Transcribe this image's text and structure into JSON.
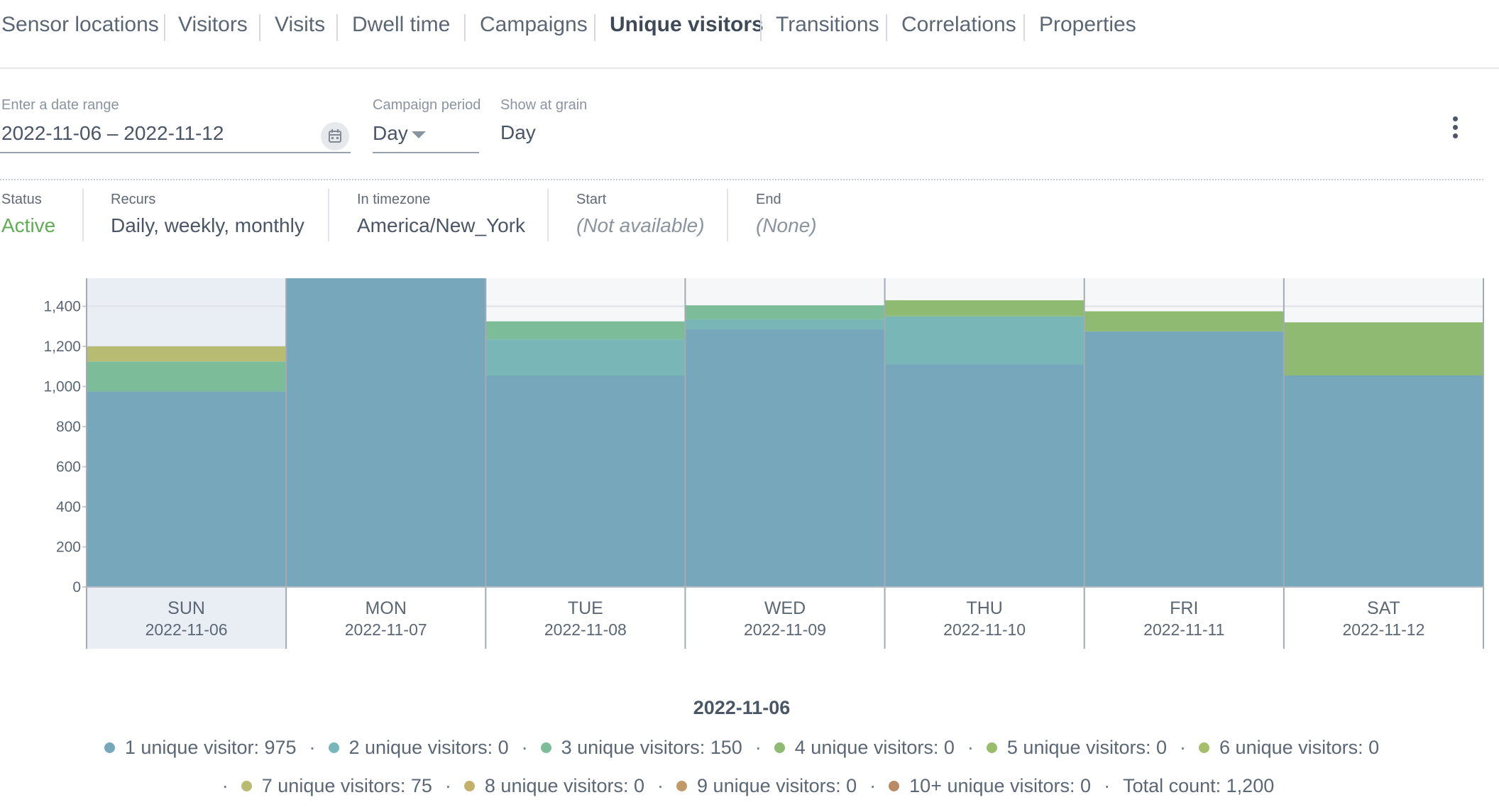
{
  "tabs": [
    {
      "label": "Sensor locations",
      "active": false
    },
    {
      "label": "Visitors",
      "active": false
    },
    {
      "label": "Visits",
      "active": false
    },
    {
      "label": "Dwell time",
      "active": false
    },
    {
      "label": "Campaigns",
      "active": false
    },
    {
      "label": "Unique visitors",
      "active": true
    },
    {
      "label": "Transitions",
      "active": false
    },
    {
      "label": "Correlations",
      "active": false
    },
    {
      "label": "Properties",
      "active": false
    }
  ],
  "controls": {
    "date_range": {
      "label": "Enter a date range",
      "value": "2022-11-06 – 2022-11-12",
      "icon": "calendar-icon"
    },
    "campaign_period": {
      "label": "Campaign period",
      "value": "Day",
      "icon": "caret-down-icon"
    },
    "grain": {
      "label": "Show at grain",
      "value": "Day"
    },
    "menu_icon": "more-vertical-icon"
  },
  "status": [
    {
      "label": "Status",
      "value": "Active",
      "style": "green"
    },
    {
      "label": "Recurs",
      "value": "Daily, weekly, monthly",
      "style": "normal"
    },
    {
      "label": "In timezone",
      "value": "America/New_York",
      "style": "normal"
    },
    {
      "label": "Start",
      "value": "(Not available)",
      "style": "italic"
    },
    {
      "label": "End",
      "value": "(None)",
      "style": "italic"
    }
  ],
  "chart_data": {
    "type": "bar",
    "stacked": true,
    "ylim": [
      0,
      1540
    ],
    "yticks": [
      0,
      200,
      400,
      600,
      800,
      1000,
      1200,
      1400
    ],
    "ytick_labels": [
      "0",
      "200",
      "400",
      "600",
      "800",
      "1,000",
      "1,200",
      "1,400"
    ],
    "selected_index": 0,
    "categories": [
      {
        "day": "SUN",
        "date": "2022-11-06"
      },
      {
        "day": "MON",
        "date": "2022-11-07"
      },
      {
        "day": "TUE",
        "date": "2022-11-08"
      },
      {
        "day": "WED",
        "date": "2022-11-09"
      },
      {
        "day": "THU",
        "date": "2022-11-10"
      },
      {
        "day": "FRI",
        "date": "2022-11-11"
      },
      {
        "day": "SAT",
        "date": "2022-11-12"
      }
    ],
    "series": [
      {
        "name": "1 unique visitor",
        "color": "#77a7bb",
        "values": [
          975,
          1540,
          1055,
          1285,
          1110,
          1275,
          1055
        ]
      },
      {
        "name": "2 unique visitors",
        "color": "#79b6b7",
        "values": [
          0,
          0,
          180,
          50,
          240,
          0,
          0
        ]
      },
      {
        "name": "3 unique visitors",
        "color": "#7dbc99",
        "values": [
          150,
          0,
          90,
          70,
          0,
          0,
          0
        ]
      },
      {
        "name": "4 unique visitors",
        "color": "#8fba72",
        "values": [
          0,
          0,
          0,
          0,
          80,
          100,
          265
        ]
      },
      {
        "name": "5 unique visitors",
        "color": "#98be6c",
        "values": [
          0,
          0,
          0,
          0,
          0,
          0,
          0
        ]
      },
      {
        "name": "6 unique visitors",
        "color": "#a5be6c",
        "values": [
          0,
          0,
          0,
          0,
          0,
          0,
          0
        ]
      },
      {
        "name": "7 unique visitors",
        "color": "#b8bb72",
        "values": [
          75,
          0,
          0,
          0,
          0,
          0,
          0
        ]
      },
      {
        "name": "8 unique visitors",
        "color": "#c3b06b",
        "values": [
          0,
          0,
          0,
          0,
          0,
          0,
          0
        ]
      },
      {
        "name": "9 unique visitors",
        "color": "#c29a69",
        "values": [
          0,
          0,
          0,
          0,
          0,
          0,
          0
        ]
      },
      {
        "name": "10+ unique visitors",
        "color": "#b88a66",
        "values": [
          0,
          0,
          0,
          0,
          0,
          0,
          0
        ]
      }
    ]
  },
  "legend": {
    "title": "2022-11-06",
    "row1": [
      {
        "text": "1 unique visitor: 975",
        "color": "#77a7bb"
      },
      {
        "text": "2 unique visitors: 0",
        "color": "#79b6b7"
      },
      {
        "text": "3 unique visitors: 150",
        "color": "#7dbc99"
      },
      {
        "text": "4 unique visitors: 0",
        "color": "#8fba72"
      },
      {
        "text": "5 unique visitors: 0",
        "color": "#98be6c"
      },
      {
        "text": "6 unique visitors: 0",
        "color": "#a5be6c"
      }
    ],
    "row2": [
      {
        "text": "7 unique visitors: 75",
        "color": "#b8bb72"
      },
      {
        "text": "8 unique visitors: 0",
        "color": "#c3b06b"
      },
      {
        "text": "9 unique visitors: 0",
        "color": "#c29a69"
      },
      {
        "text": "10+ unique visitors: 0",
        "color": "#b88a66"
      }
    ],
    "total": "Total count: 1,200",
    "separator": "·"
  }
}
